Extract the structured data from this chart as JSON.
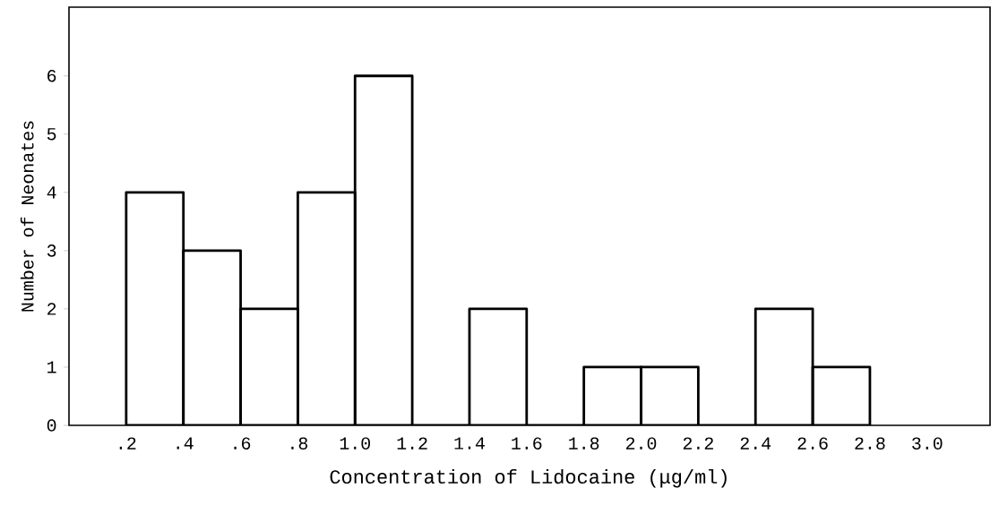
{
  "chart_data": {
    "type": "histogram",
    "xlabel": "Concentration of Lidocaine (μg/ml)",
    "ylabel": "Number of Neonates",
    "bins": [
      0.2,
      0.4,
      0.6,
      0.8,
      1.0,
      1.2,
      1.4,
      1.6,
      1.8,
      2.0,
      2.2,
      2.4,
      2.6,
      2.8
    ],
    "values": [
      4,
      3,
      2,
      4,
      6,
      0,
      2,
      0,
      1,
      1,
      0,
      2,
      1
    ],
    "color": "#000000",
    "xlim": [
      0,
      3.22
    ],
    "ylim": [
      0,
      7.18
    ],
    "xticks": [
      {
        "value": 0.2,
        "label": ".2"
      },
      {
        "value": 0.4,
        "label": ".4"
      },
      {
        "value": 0.6,
        "label": ".6"
      },
      {
        "value": 0.8,
        "label": ".8"
      },
      {
        "value": 1.0,
        "label": "1.0"
      },
      {
        "value": 1.2,
        "label": "1.2"
      },
      {
        "value": 1.4,
        "label": "1.4"
      },
      {
        "value": 1.6,
        "label": "1.6"
      },
      {
        "value": 1.8,
        "label": "1.8"
      },
      {
        "value": 2.0,
        "label": "2.0"
      },
      {
        "value": 2.2,
        "label": "2.2"
      },
      {
        "value": 2.4,
        "label": "2.4"
      },
      {
        "value": 2.6,
        "label": "2.6"
      },
      {
        "value": 2.8,
        "label": "2.8"
      },
      {
        "value": 3.0,
        "label": "3.0"
      }
    ],
    "yticks": [
      0,
      1,
      2,
      3,
      4,
      5,
      6
    ]
  }
}
